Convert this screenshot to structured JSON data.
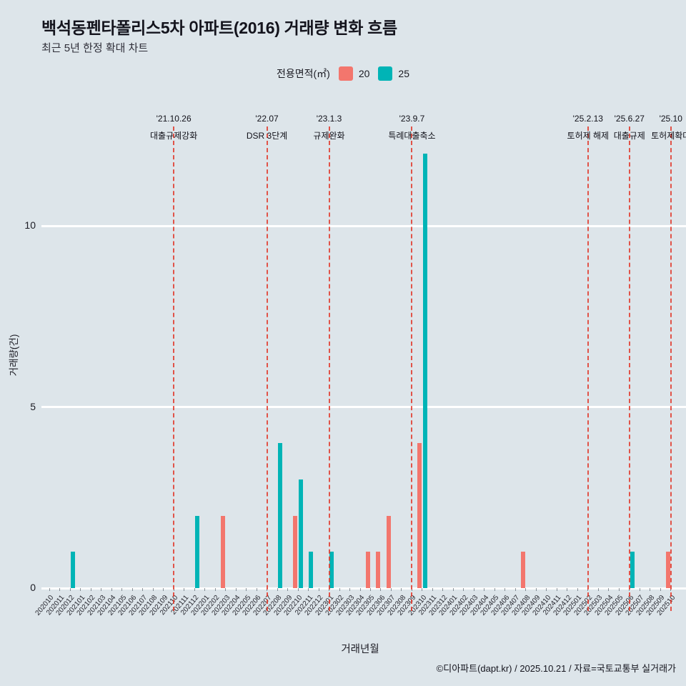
{
  "title": "백석동펜타폴리스5차 아파트(2016) 거래량 변화 흐름",
  "subtitle": "최근 5년 한정 확대 차트",
  "legend": {
    "label": "전용면적(㎡)",
    "items": [
      {
        "name": "20",
        "color": "#f3766d"
      },
      {
        "name": "25",
        "color": "#00b4b6"
      }
    ]
  },
  "colors": {
    "background": "#dde5ea",
    "gridline": "#ffffff",
    "annotation_line": "#e23a2c",
    "text": "#14141d"
  },
  "chart_data": {
    "type": "bar",
    "title": "백석동펜타폴리스5차 아파트(2016) 거래량 변화 흐름",
    "xlabel": "거래년월",
    "ylabel": "거래량(건)",
    "yticks": [
      0,
      5,
      10
    ],
    "ylim": [
      0,
      13.4
    ],
    "grid": "horizontal-white",
    "legend_position": "top-center",
    "x": [
      "202010",
      "202011",
      "202012",
      "202101",
      "202102",
      "202103",
      "202104",
      "202105",
      "202106",
      "202107",
      "202108",
      "202109",
      "202110",
      "202111",
      "202112",
      "202201",
      "202202",
      "202203",
      "202204",
      "202205",
      "202206",
      "202207",
      "202208",
      "202209",
      "202210",
      "202211",
      "202212",
      "202301",
      "202302",
      "202303",
      "202304",
      "202305",
      "202306",
      "202307",
      "202308",
      "202309",
      "202310",
      "202311",
      "202312",
      "202401",
      "202402",
      "202403",
      "202404",
      "202405",
      "202406",
      "202407",
      "202408",
      "202409",
      "202410",
      "202411",
      "202412",
      "202501",
      "202502",
      "202503",
      "202504",
      "202505",
      "202506",
      "202507",
      "202508",
      "202509",
      "202510"
    ],
    "series": [
      {
        "name": "20",
        "color": "#f3766d",
        "points": {
          "202203": 2,
          "202210": 2,
          "202305": 1,
          "202306": 1,
          "202307": 2,
          "202310": 4,
          "202408": 1,
          "202510": 1
        }
      },
      {
        "name": "25",
        "color": "#00b4b6",
        "points": {
          "202012": 1,
          "202112": 2,
          "202208": 4,
          "202210": 3,
          "202211": 1,
          "202301": 1,
          "202310": 12,
          "202506": 1
        }
      }
    ],
    "annotations": [
      {
        "month": "202110",
        "date": "'21.10.26",
        "label": "대출규제강화"
      },
      {
        "month": "202207",
        "date": "'22.07",
        "label": "DSR 3단계"
      },
      {
        "month": "202301",
        "date": "'23.1.3",
        "label": "규제완화"
      },
      {
        "month": "202309",
        "date": "'23.9.7",
        "label": "특례대출축소"
      },
      {
        "month": "202502",
        "date": "'25.2.13",
        "label": "토허제 해제"
      },
      {
        "month": "202506",
        "date": "'25.6.27",
        "label": "대출규제"
      },
      {
        "month": "202510",
        "date": "'25.10",
        "label": "토허제확대"
      }
    ]
  },
  "footer": "©디아파트(dapt.kr) / 2025.10.21 / 자료=국토교통부 실거래가"
}
